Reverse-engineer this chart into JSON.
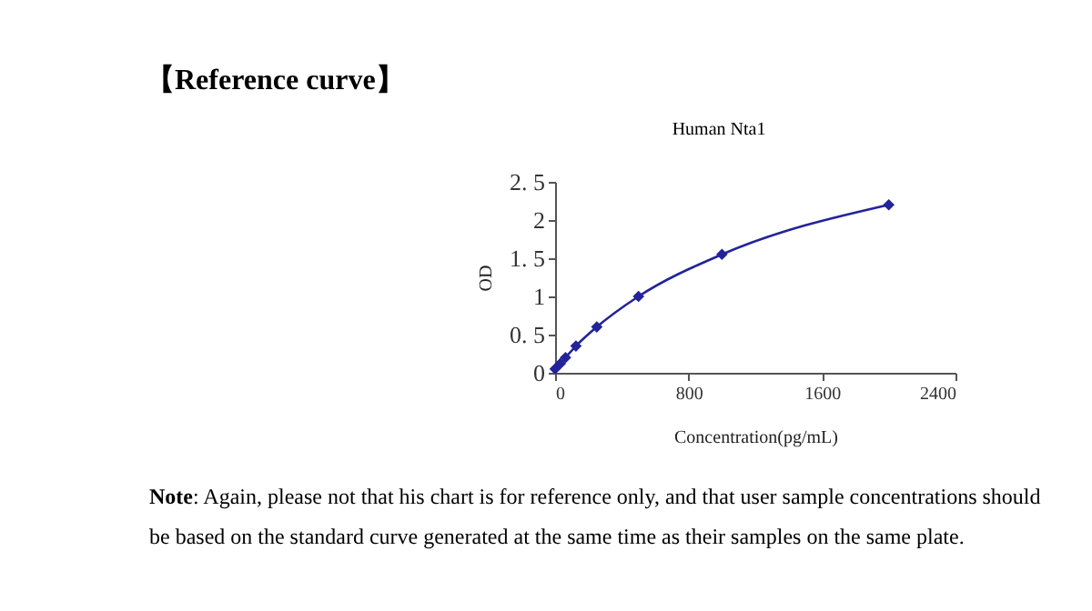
{
  "chart_data": {
    "type": "line",
    "title": "【Reference curve】",
    "subtitle": "Human Nta1",
    "xlabel": "Concentration(pg/mL)",
    "ylabel": "OD",
    "x": [
      0,
      31.25,
      62.5,
      125,
      250,
      500,
      1000,
      2000
    ],
    "series": [
      {
        "color": "#23239a",
        "values": [
          0.05,
          0.12,
          0.2,
          0.35,
          0.6,
          1.0,
          1.55,
          2.2
        ]
      }
    ],
    "xlim": [
      0,
      2400
    ],
    "xticks": [
      0,
      800,
      1600,
      2400
    ],
    "ylim": [
      0,
      2.5
    ],
    "yticks": [
      0,
      {
        "value": 0.5,
        "label": "0. 5"
      },
      1,
      {
        "value": 1.5,
        "label": "1. 5"
      },
      2,
      {
        "value": 2.5,
        "label": "2. 5"
      }
    ],
    "grid": false,
    "legend": false,
    "marker": "diamond",
    "line_style": "solid",
    "annotations": [
      "Note: Again, please not that his chart is for reference only, and that user sample concentrations should be based on the standard curve generated at the same time as their samples on the same plate."
    ]
  }
}
